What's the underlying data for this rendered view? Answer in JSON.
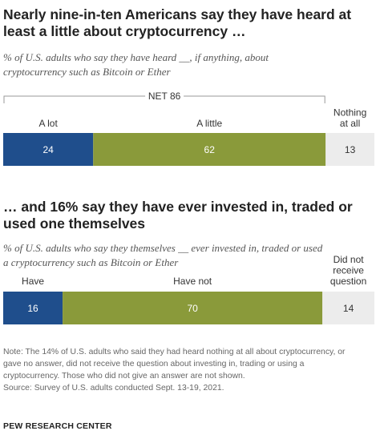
{
  "chart_data": [
    {
      "type": "bar",
      "orientation": "horizontal",
      "stacked": true,
      "title": "Nearly nine-in-ten Americans say they have heard at least a little about cryptocurrency …",
      "subtitle": "% of U.S. adults who say they have heard __, if anything, about cryptocurrency such as Bitcoin or Ether",
      "net_label": "NET 86",
      "series": [
        {
          "name": "A lot",
          "values": [
            24
          ],
          "color": "#1f4e8c"
        },
        {
          "name": "A little",
          "values": [
            62
          ],
          "color": "#8a9a3a"
        },
        {
          "name": "Nothing at all",
          "values": [
            13
          ],
          "color": "#ececec"
        }
      ]
    },
    {
      "type": "bar",
      "orientation": "horizontal",
      "stacked": true,
      "title": "… and 16% say they have ever invested in, traded or used one themselves",
      "subtitle": "% of U.S. adults who say they themselves __ ever invested in, traded or used a cryptocurrency such as Bitcoin or Ether",
      "series": [
        {
          "name": "Have",
          "values": [
            16
          ],
          "color": "#1f4e8c"
        },
        {
          "name": "Have not",
          "values": [
            70
          ],
          "color": "#8a9a3a"
        },
        {
          "name": "Did not receive question",
          "values": [
            14
          ],
          "color": "#ececec"
        }
      ]
    }
  ],
  "titles": {
    "t1": [
      "Nearly nine-in-ten Americans say they have heard at",
      "least a little about cryptocurrency …"
    ],
    "s1": [
      "% of U.S. adults who say they have heard __, if anything, about",
      "cryptocurrency such as Bitcoin or Ether"
    ],
    "t2": [
      "… and 16% say they have ever invested in, traded or",
      "used one themselves"
    ],
    "s2": [
      "% of U.S. adults who say they themselves __ ever invested in, traded or used",
      "a cryptocurrency such as Bitcoin or Ether"
    ]
  },
  "legend_lines": {
    "c1": [
      [
        "A lot"
      ],
      [
        "A little"
      ],
      [
        "Nothing",
        "at all"
      ]
    ],
    "c2": [
      [
        "Have"
      ],
      [
        "Have not"
      ],
      [
        "Did not",
        "receive",
        "question"
      ]
    ]
  },
  "note": {
    "lines": [
      "Note: The 14% of U.S. adults who said they had heard nothing at all about cryptocurrency, or",
      "gave no answer, did not receive the question about investing in, trading or using a",
      "cryptocurrency. Those who did not give an answer are not shown."
    ],
    "source": "Source: Survey of U.S. adults conducted Sept. 13-19, 2021."
  },
  "credit": "PEW RESEARCH CENTER"
}
